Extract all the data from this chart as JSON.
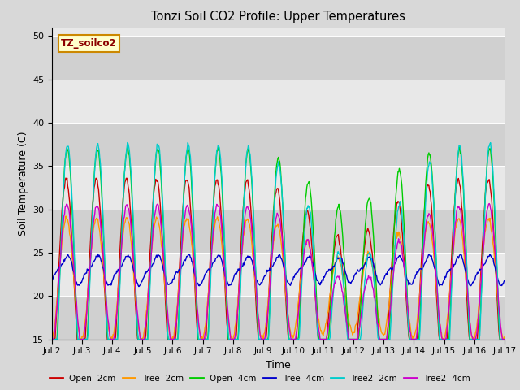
{
  "title": "Tonzi Soil CO2 Profile: Upper Temperatures",
  "ylabel": "Soil Temperature (C)",
  "xlabel": "Time",
  "ylim": [
    15,
    51
  ],
  "yticks": [
    15,
    20,
    25,
    30,
    35,
    40,
    45,
    50
  ],
  "bg_color": "#d8d8d8",
  "plot_bg_color": "#e8e8e8",
  "label_box_text": "TZ_soilco2",
  "label_box_color": "#ffffcc",
  "label_box_edge": "#cc8800",
  "series": [
    {
      "label": "Open -2cm",
      "color": "#cc0000"
    },
    {
      "label": "Tree -2cm",
      "color": "#ff9900"
    },
    {
      "label": "Open -4cm",
      "color": "#00cc00"
    },
    {
      "label": "Tree -4cm",
      "color": "#0000cc"
    },
    {
      "label": "Tree2 -2cm",
      "color": "#00cccc"
    },
    {
      "label": "Tree2 -4cm",
      "color": "#cc00cc"
    }
  ],
  "xtick_labels": [
    "Jul 2",
    "Jul 3",
    "Jul 4",
    "Jul 5",
    "Jul 6",
    "Jul 7",
    "Jul 8",
    "Jul 9",
    "Jul 10",
    "Jul 11",
    "Jul 12",
    "Jul 13",
    "Jul 14",
    "Jul 15",
    "Jul 16",
    "Jul 17"
  ],
  "n_days": 15,
  "pts_per_day": 48
}
